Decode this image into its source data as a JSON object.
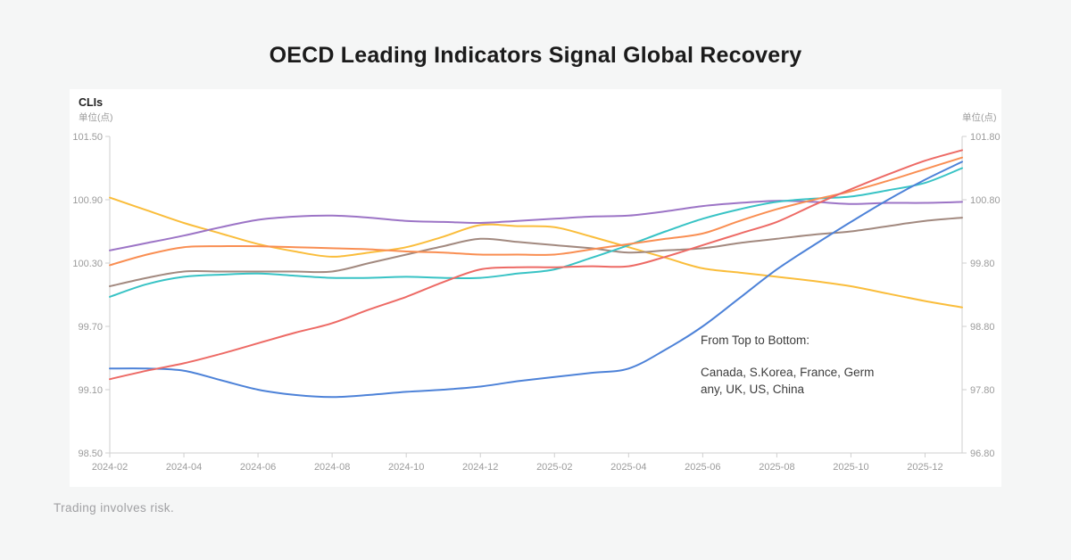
{
  "page": {
    "title": "OECD Leading Indicators Signal Global Recovery",
    "disclaimer": "Trading involves risk."
  },
  "panel": {
    "label": "CLIs",
    "unit_left": "单位(点)",
    "unit_right": "单位(点)"
  },
  "annotation": {
    "line1": "From Top to Bottom:",
    "line2": "Canada, S.Korea, France, Germany, UK, US, China"
  },
  "chart_data": {
    "type": "line",
    "title": "CLIs",
    "grid": false,
    "legend_position": "none",
    "x": [
      "2024-02",
      "2024-03",
      "2024-04",
      "2024-05",
      "2024-06",
      "2024-07",
      "2024-08",
      "2024-09",
      "2024-10",
      "2024-11",
      "2024-12",
      "2025-01",
      "2025-02",
      "2025-03",
      "2025-04",
      "2025-05",
      "2025-06",
      "2025-07",
      "2025-08",
      "2025-09",
      "2025-10",
      "2025-11",
      "2025-12",
      "2026-01"
    ],
    "x_tick_labels": [
      "2024-02",
      "2024-04",
      "2024-06",
      "2024-08",
      "2024-10",
      "2024-12",
      "2025-02",
      "2025-04",
      "2025-06",
      "2025-08",
      "2025-10",
      "2025-12"
    ],
    "left_axis": {
      "min": 98.5,
      "max": 101.5,
      "ticks": [
        101.5,
        100.9,
        100.3,
        99.7,
        99.1,
        98.5
      ]
    },
    "right_axis": {
      "min": 96.8,
      "max": 101.8,
      "ticks": [
        101.8,
        100.8,
        99.8,
        98.8,
        97.8,
        96.8
      ]
    },
    "series": [
      {
        "name": "Canada",
        "color": "#ed6a65",
        "values": [
          99.2,
          99.28,
          99.35,
          99.44,
          99.54,
          99.64,
          99.73,
          99.86,
          99.98,
          100.12,
          100.24,
          100.26,
          100.26,
          100.27,
          100.27,
          100.36,
          100.47,
          100.58,
          100.69,
          100.85,
          101.0,
          101.14,
          101.27,
          101.37
        ]
      },
      {
        "name": "S.Korea",
        "color": "#f98e52",
        "values": [
          100.28,
          100.38,
          100.45,
          100.46,
          100.46,
          100.45,
          100.44,
          100.43,
          100.41,
          100.4,
          100.38,
          100.38,
          100.38,
          100.43,
          100.48,
          100.53,
          100.58,
          100.7,
          100.81,
          100.9,
          100.98,
          101.08,
          101.19,
          101.3
        ]
      },
      {
        "name": "France",
        "color": "#4d82d8",
        "values": [
          99.3,
          99.3,
          99.28,
          99.19,
          99.1,
          99.05,
          99.03,
          99.05,
          99.08,
          99.1,
          99.13,
          99.18,
          99.22,
          99.26,
          99.3,
          99.48,
          99.7,
          99.97,
          100.24,
          100.47,
          100.69,
          100.9,
          101.09,
          101.26
        ]
      },
      {
        "name": "Germany",
        "color": "#38c3c5",
        "values": [
          99.98,
          100.1,
          100.17,
          100.19,
          100.2,
          100.18,
          100.16,
          100.16,
          100.17,
          100.16,
          100.16,
          100.2,
          100.24,
          100.35,
          100.47,
          100.6,
          100.72,
          100.81,
          100.88,
          100.91,
          100.93,
          100.99,
          101.06,
          101.2
        ]
      },
      {
        "name": "UK",
        "color": "#9c74c6",
        "values": [
          100.42,
          100.49,
          100.56,
          100.64,
          100.71,
          100.74,
          100.75,
          100.73,
          100.7,
          100.69,
          100.68,
          100.7,
          100.72,
          100.74,
          100.75,
          100.79,
          100.84,
          100.87,
          100.89,
          100.88,
          100.86,
          100.87,
          100.87,
          100.88
        ]
      },
      {
        "name": "US",
        "color": "#a2897f",
        "values": [
          100.08,
          100.16,
          100.22,
          100.22,
          100.22,
          100.22,
          100.22,
          100.3,
          100.38,
          100.46,
          100.53,
          100.5,
          100.47,
          100.44,
          100.4,
          100.42,
          100.44,
          100.49,
          100.53,
          100.57,
          100.6,
          100.65,
          100.7,
          100.73
        ]
      },
      {
        "name": "China",
        "color": "#fabd3b",
        "values": [
          100.92,
          100.8,
          100.68,
          100.58,
          100.48,
          100.41,
          100.36,
          100.4,
          100.45,
          100.55,
          100.66,
          100.65,
          100.64,
          100.55,
          100.45,
          100.35,
          100.25,
          100.21,
          100.17,
          100.13,
          100.08,
          100.01,
          99.94,
          99.88
        ]
      }
    ]
  }
}
